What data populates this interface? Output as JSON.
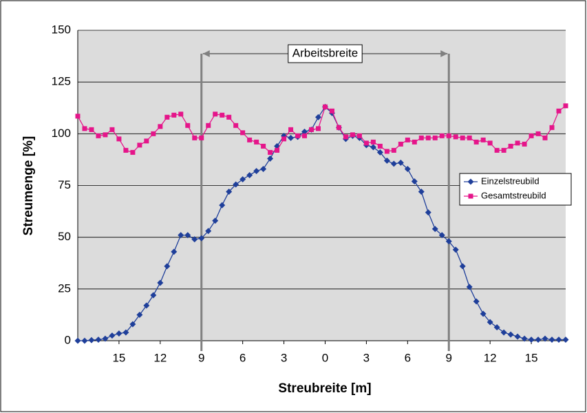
{
  "chart_data": {
    "type": "line",
    "xlabel": "Streubreite [m]",
    "ylabel": "Streumenge [%]",
    "x": [
      -18,
      -17.5,
      -17,
      -16.5,
      -16,
      -15.5,
      -15,
      -14.5,
      -14,
      -13.5,
      -13,
      -12.5,
      -12,
      -11.5,
      -11,
      -10.5,
      -10,
      -9.5,
      -9,
      -8.5,
      -8,
      -7.5,
      -7,
      -6.5,
      -6,
      -5.5,
      -5,
      -4.5,
      -4,
      -3.5,
      -3,
      -2.5,
      -2,
      -1.5,
      -1,
      -0.5,
      0,
      0.5,
      1,
      1.5,
      2,
      2.5,
      3,
      3.5,
      4,
      4.5,
      5,
      5.5,
      6,
      6.5,
      7,
      7.5,
      8,
      8.5,
      9,
      9.5,
      10,
      10.5,
      11,
      11.5,
      12,
      12.5,
      13,
      13.5,
      14,
      14.5,
      15,
      15.5,
      16,
      16.5,
      17,
      17.5
    ],
    "series": [
      {
        "name": "Einzelstreubild",
        "color": "#1f3f9a",
        "marker": "diamond",
        "values": [
          0,
          0,
          0.3,
          0.5,
          1,
          2.5,
          3.5,
          4,
          8,
          12.5,
          17,
          22,
          28,
          36,
          43,
          51,
          51,
          49,
          49.5,
          53,
          58,
          65.5,
          72,
          75.5,
          78,
          80,
          82,
          83,
          88,
          94,
          99,
          98,
          98.5,
          101,
          102,
          108,
          113,
          110,
          103,
          97.5,
          99,
          98,
          94.5,
          93.5,
          91,
          87,
          85.5,
          86,
          83,
          77,
          72,
          62,
          54,
          51,
          48,
          44,
          36,
          26,
          19,
          13,
          9,
          6.5,
          4,
          3,
          2,
          1,
          0.5,
          0.5,
          1,
          0.5,
          0.5,
          0.5
        ]
      },
      {
        "name": "Gesamtstreubild",
        "color": "#e5158a",
        "marker": "square",
        "values": [
          108.5,
          102.5,
          102,
          99,
          99.5,
          102,
          97.5,
          92,
          91,
          94.5,
          96.5,
          100,
          103.5,
          108,
          109,
          109.5,
          104,
          98,
          98,
          104,
          109.5,
          109,
          108,
          104,
          100.5,
          97,
          96,
          94,
          91,
          92,
          97.5,
          102,
          99,
          99,
          102,
          102.5,
          113,
          111,
          103,
          98.5,
          99.5,
          99,
          95.5,
          96,
          94,
          91.5,
          92,
          95,
          97,
          96,
          98,
          98,
          98,
          99,
          99,
          98.5,
          98,
          98,
          96,
          97,
          95.5,
          92,
          92,
          94,
          95.5,
          95,
          99,
          100,
          98,
          103,
          111,
          113.5
        ]
      }
    ],
    "xlim": [
      -18,
      17.5
    ],
    "xticks": [
      {
        "value": -15,
        "label": "15"
      },
      {
        "value": -12,
        "label": "12"
      },
      {
        "value": -9,
        "label": "9"
      },
      {
        "value": -6,
        "label": "6"
      },
      {
        "value": -3,
        "label": "3"
      },
      0,
      3,
      6,
      9,
      12,
      15
    ],
    "ylim": [
      0,
      150
    ],
    "yticks": [
      0,
      25,
      50,
      75,
      100,
      125,
      150
    ],
    "grid": true,
    "legend": "right",
    "annotation": {
      "label": "Arbeitsbreite",
      "from": -9,
      "to": 9
    }
  }
}
